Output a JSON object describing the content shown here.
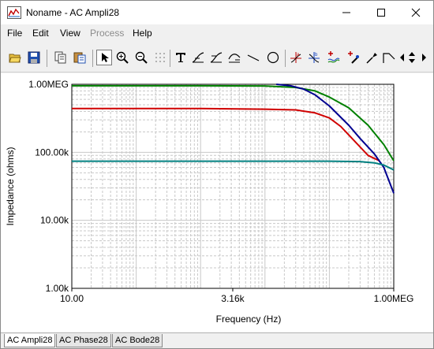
{
  "window": {
    "title": "Noname - AC Ampli28",
    "app_icon": "chart-app-icon",
    "controls": [
      "minimize-icon",
      "maximize-icon",
      "close-icon"
    ]
  },
  "menu": [
    {
      "label": "File",
      "enabled": true
    },
    {
      "label": "Edit",
      "enabled": true
    },
    {
      "label": "View",
      "enabled": true
    },
    {
      "label": "Process",
      "enabled": false
    },
    {
      "label": "Help",
      "enabled": true
    }
  ],
  "toolbar": {
    "buttons": [
      "open-folder-icon",
      "save-disk-icon",
      "copy-icon",
      "paste-icon",
      "pointer-icon",
      "zoom-in-icon",
      "zoom-out-icon",
      "dotted-grid-icon",
      "text-tool-icon",
      "curve-tool-a-icon",
      "curve-tool-b-icon",
      "curve-tool-c-icon",
      "line-tool-icon",
      "circle-tool-icon",
      "cursor-a-icon",
      "cursor-b-icon",
      "add-curve-icon",
      "marker-icon",
      "probe-icon",
      "edit-curve-icon",
      "nav-left-icon",
      "nav-updown-icon",
      "nav-right-icon"
    ],
    "selected": "pointer-icon"
  },
  "chart_data": {
    "type": "line",
    "xlabel": "Frequency (Hz)",
    "ylabel": "Impedance (ohms)",
    "xscale": "log",
    "yscale": "log",
    "xlim": [
      10,
      1000000
    ],
    "ylim": [
      1000,
      1000000
    ],
    "x_tick_labels": [
      {
        "value": 10,
        "label": "10.00"
      },
      {
        "value": 3160,
        "label": "3.16k"
      },
      {
        "value": 1000000,
        "label": "1.00MEG"
      }
    ],
    "y_tick_labels": [
      {
        "value": 1000000,
        "label": "1.00MEG"
      },
      {
        "value": 100000,
        "label": "100.00k"
      },
      {
        "value": 10000,
        "label": "10.00k"
      },
      {
        "value": 1000,
        "label": "1.00k"
      }
    ],
    "grid": true,
    "legend": "none",
    "series": [
      {
        "color": "#008000",
        "x": [
          10,
          1000,
          10000,
          30000,
          60000,
          100000,
          200000,
          400000,
          700000,
          1000000
        ],
        "y": [
          950000,
          950000,
          945000,
          900000,
          800000,
          650000,
          450000,
          250000,
          130000,
          75000
        ]
      },
      {
        "color": "#d00000",
        "x": [
          10,
          1000,
          10000,
          30000,
          60000,
          100000,
          150000,
          200000,
          300000,
          400000,
          600000
        ],
        "y": [
          440000,
          440000,
          430000,
          420000,
          380000,
          320000,
          240000,
          180000,
          120000,
          90000,
          75000
        ]
      },
      {
        "color": "#000090",
        "x": [
          15000,
          25000,
          40000,
          60000,
          100000,
          200000,
          300000,
          500000,
          700000,
          1000000
        ],
        "y": [
          1000000,
          950000,
          850000,
          700000,
          480000,
          250000,
          160000,
          95000,
          60000,
          25000
        ]
      },
      {
        "color": "#008080",
        "x": [
          10,
          1000,
          100000,
          300000,
          500000,
          700000,
          1000000
        ],
        "y": [
          74000,
          74000,
          74000,
          73000,
          70000,
          65000,
          55000
        ]
      }
    ]
  },
  "tabs": [
    {
      "label": "AC Ampli28",
      "active": true
    },
    {
      "label": "AC Phase28",
      "active": false
    },
    {
      "label": "AC Bode28",
      "active": false
    }
  ]
}
